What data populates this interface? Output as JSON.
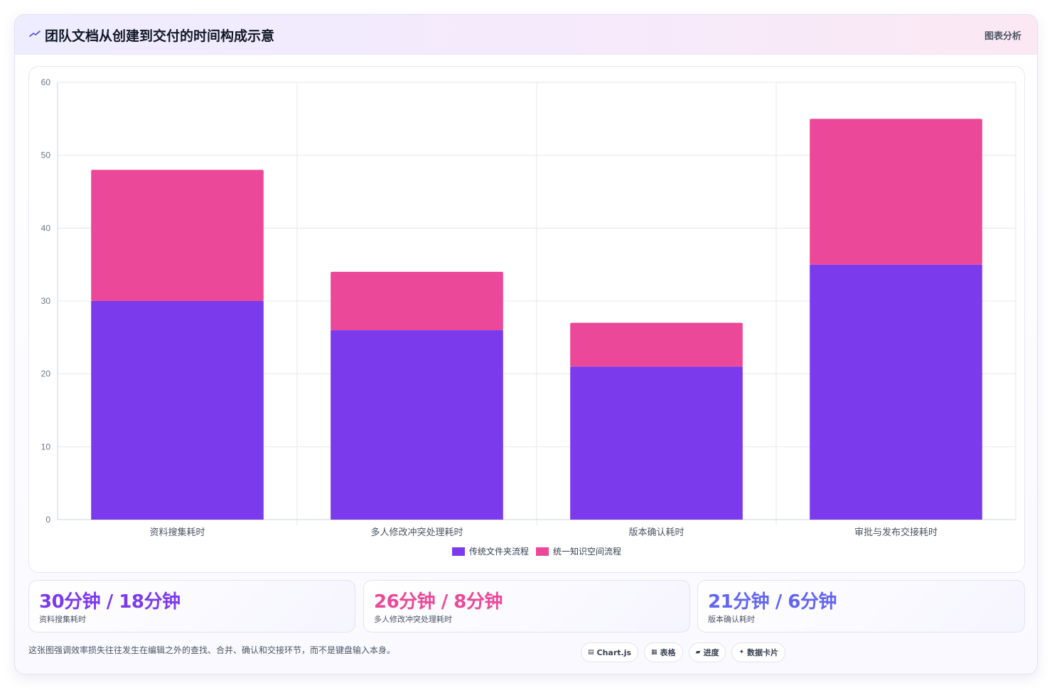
{
  "header": {
    "title": "团队文档从创建到交付的时间构成示意",
    "right_label": "图表分析",
    "icon": "trend-icon"
  },
  "chart_data": {
    "type": "bar",
    "stacked": true,
    "categories": [
      "资料搜集耗时",
      "多人修改冲突处理耗时",
      "版本确认耗时",
      "审批与发布交接耗时"
    ],
    "series": [
      {
        "name": "传统文件夹流程",
        "color": "#7c3aed",
        "values": [
          30,
          26,
          21,
          35
        ]
      },
      {
        "name": "统一知识空间流程",
        "color": "#ec4899",
        "values": [
          18,
          8,
          6,
          20
        ]
      }
    ],
    "ylim": [
      0,
      60
    ],
    "yticks": [
      0,
      10,
      20,
      30,
      40,
      50,
      60
    ],
    "grid": true,
    "legend": "bottom-center"
  },
  "stats": [
    {
      "value": "30分钟 / 18分钟",
      "label": "资料搜集耗时",
      "color": "#7c3aed"
    },
    {
      "value": "26分钟 / 8分钟",
      "label": "多人修改冲突处理耗时",
      "color": "#ec4899"
    },
    {
      "value": "21分钟 / 6分钟",
      "label": "版本确认耗时",
      "color": "#6366f1"
    }
  ],
  "footnote": "这张图强调效率损失往往发生在编辑之外的查找、合并、确认和交接环节，而不是键盘输入本身。",
  "chips": [
    {
      "icon": "▤",
      "label": "Chart.js"
    },
    {
      "icon": "▦",
      "label": "表格"
    },
    {
      "icon": "▰",
      "label": "进度"
    },
    {
      "icon": "✦",
      "label": "数据卡片"
    }
  ]
}
